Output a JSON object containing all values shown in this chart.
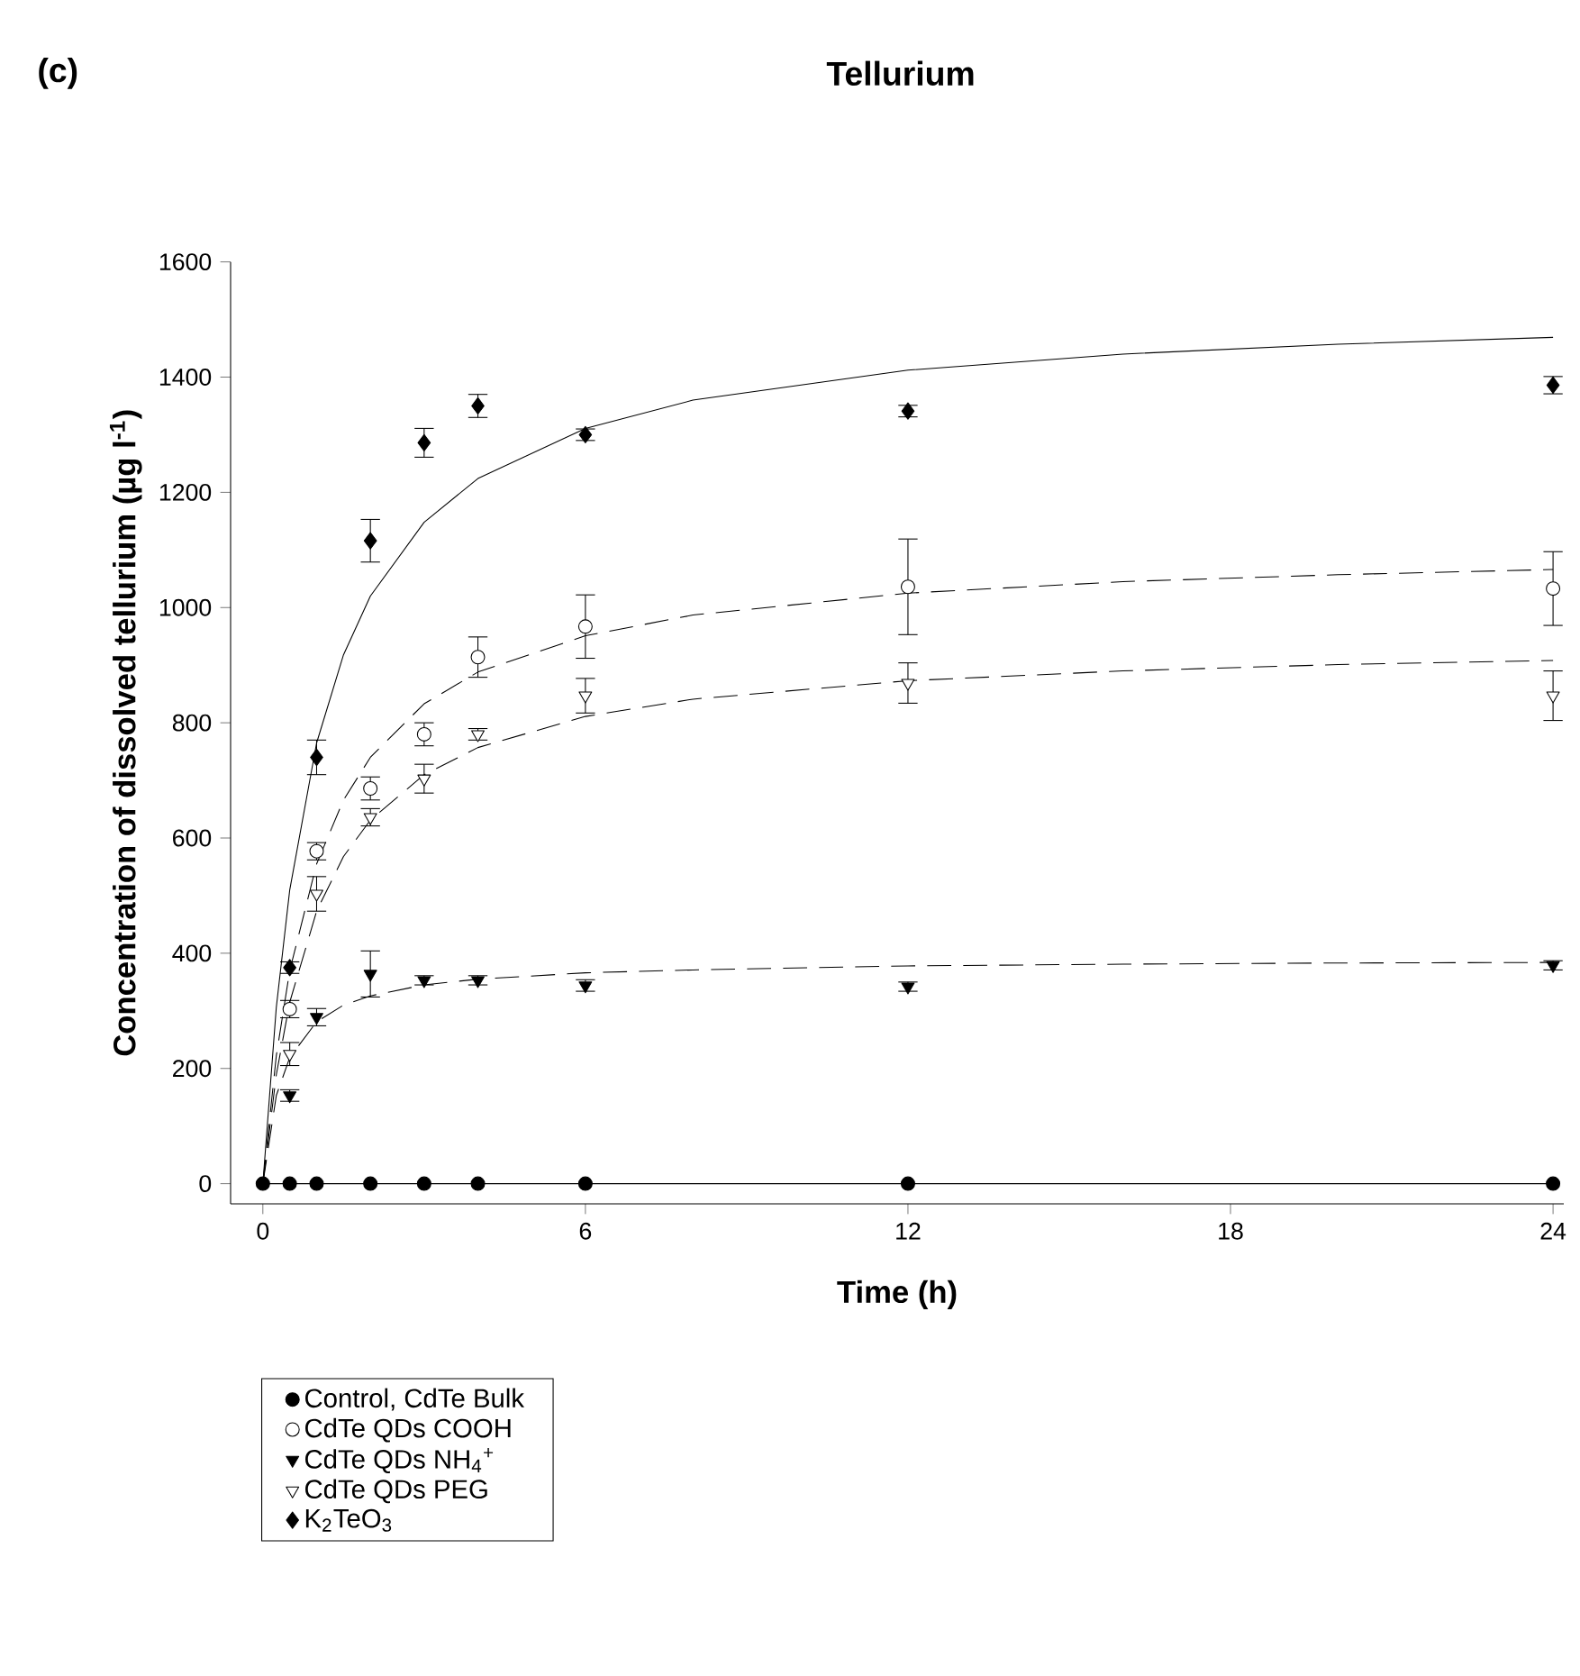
{
  "chart_data": {
    "type": "scatter",
    "title": "Tellurium",
    "xlabel": "Time (h)",
    "ylabel": "Concentration of dissolved tellurium (µg l$^{-1}$)",
    "annotations": [
      "(c)"
    ],
    "x": [
      0,
      0.5,
      1,
      2,
      3,
      4,
      6,
      12,
      24
    ],
    "xlim": [
      -0.6,
      24.2
    ],
    "ylim": [
      -35,
      1600
    ],
    "xticks": [
      0,
      6,
      12,
      18,
      24
    ],
    "yticks": [
      0,
      200,
      400,
      600,
      800,
      1000,
      1200,
      1400,
      1600
    ],
    "legend": "bottom left",
    "series": [
      {
        "name": "Control, CdTe Bulk",
        "color": "#000000",
        "marker": "circle",
        "values": [
          0,
          0,
          0,
          0,
          0,
          0,
          0,
          0,
          0
        ]
      },
      {
        "name": "CdTe QDs COOH",
        "color": "#ffffff",
        "marker": "circle",
        "values": [
          null,
          303,
          577,
          686,
          780,
          914,
          967,
          1036,
          1033
        ],
        "errors": [
          null,
          15,
          15,
          20,
          20,
          35,
          55,
          83,
          64
        ]
      },
      {
        "name": "CdTe QDs NH$_{4}$$^{+}$",
        "color": "#000000",
        "marker": "triangle",
        "values": [
          null,
          153,
          289,
          364,
          353,
          353,
          344,
          342,
          379
        ],
        "errors": [
          null,
          10,
          15,
          40,
          8,
          8,
          10,
          8,
          8
        ]
      },
      {
        "name": "CdTe QDs PEG",
        "color": "#ffffff",
        "marker": "triangle",
        "values": [
          null,
          225,
          503,
          636,
          703,
          780,
          847,
          869,
          847
        ],
        "errors": [
          null,
          20,
          30,
          15,
          25,
          10,
          30,
          35,
          43
        ]
      },
      {
        "name": "K$_{2}$TeO$_{3}$",
        "color": "#000000",
        "marker": "diamond",
        "values": [
          null,
          375,
          740,
          1116,
          1286,
          1350,
          1300,
          1341,
          1386
        ],
        "errors": [
          null,
          10,
          30,
          37,
          25,
          20,
          10,
          10,
          15
        ]
      },
      {
        "type": "line",
        "color": "#000000",
        "line_style": "solid",
        "x": [
          0,
          24
        ],
        "values": [
          0,
          0
        ]
      },
      {
        "type": "line",
        "color": "#000000",
        "line_style": "dashed",
        "x": [
          0,
          0.25,
          0.5,
          1,
          1.5,
          2,
          3,
          4,
          6,
          8,
          12,
          16,
          20,
          24
        ],
        "values": [
          0,
          222,
          370,
          555,
          666,
          740,
          833,
          888,
          951,
          987,
          1025,
          1045,
          1057,
          1066
        ]
      },
      {
        "type": "line",
        "color": "#000000",
        "line_style": "dashed",
        "x": [
          0,
          0.25,
          0.5,
          1,
          1.5,
          2,
          3,
          4,
          6,
          8,
          12,
          16,
          20,
          24
        ],
        "values": [
          0,
          153,
          219,
          281,
          310,
          326,
          345,
          355,
          366,
          371,
          378,
          381,
          383,
          384
        ]
      },
      {
        "type": "line",
        "color": "#000000",
        "line_style": "dashed",
        "x": [
          0,
          0.25,
          0.5,
          1,
          1.5,
          2,
          3,
          4,
          6,
          8,
          12,
          16,
          20,
          24
        ],
        "values": [
          0,
          189,
          315,
          473,
          568,
          631,
          710,
          757,
          811,
          841,
          873,
          890,
          901,
          908
        ]
      },
      {
        "type": "line",
        "color": "#000000",
        "line_style": "solid",
        "x": [
          0,
          0.25,
          0.5,
          1,
          1.5,
          2,
          3,
          4,
          6,
          8,
          12,
          16,
          20,
          24
        ],
        "values": [
          0,
          306,
          510,
          765,
          918,
          1020,
          1148,
          1224,
          1311,
          1360,
          1412,
          1440,
          1457,
          1469
        ]
      }
    ]
  }
}
